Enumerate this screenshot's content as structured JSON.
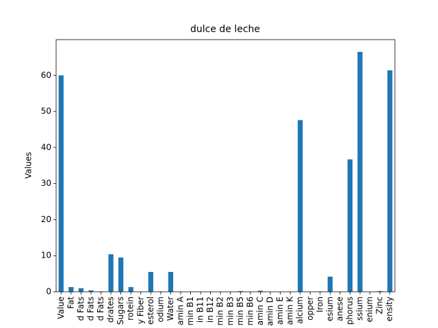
{
  "chart_data": {
    "type": "bar",
    "title": "dulce de leche",
    "ylabel": "Values",
    "categories": [
      "Value",
      "Fat",
      "d Fats",
      "d Fats",
      "d Fats",
      "drates",
      "Sugars",
      "rotein",
      "y Fiber",
      "esterol",
      "odium",
      "Water",
      "amin A",
      "min B1",
      "in B11",
      "in B12",
      "min B2",
      "min B3",
      "min B5",
      "min B6",
      "amin C",
      "amin D",
      "amin E",
      "amin K",
      "alcium",
      "opper",
      "Iron",
      "esium",
      "anese",
      "phorus",
      "ssium",
      "enium",
      "Zinc",
      "ensity"
    ],
    "values": [
      60,
      1.3,
      1.0,
      0.4,
      0.1,
      10.4,
      9.5,
      1.3,
      0,
      5.5,
      0.1,
      5.5,
      0,
      0,
      0,
      0,
      0,
      0,
      0.2,
      0,
      0.3,
      0,
      0,
      0,
      47.6,
      0,
      0.1,
      4.2,
      0,
      36.7,
      66.5,
      0,
      0.2,
      61.4
    ],
    "color": "#1f77b4",
    "ylim": [
      0,
      69.9
    ],
    "yticks": [
      0,
      10,
      20,
      30,
      40,
      50,
      60
    ]
  }
}
